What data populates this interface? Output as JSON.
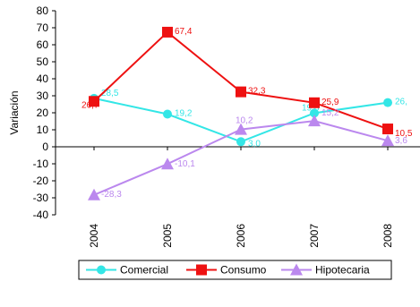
{
  "chart_data": {
    "type": "line",
    "ylabel": "Variación",
    "xlabel": "",
    "ylim": [
      -40,
      80
    ],
    "yticks": [
      "80",
      "70",
      "60",
      "50",
      "40",
      "30",
      "20",
      "10",
      "0",
      "-10",
      "-20",
      "-30",
      "-40"
    ],
    "categories": [
      "2004",
      "2005",
      "2006",
      "2007",
      "2008"
    ],
    "legend_position": "bottom",
    "grid": false,
    "series": [
      {
        "name": "Comercial",
        "color": "#33e6e6",
        "marker": "circle",
        "values": [
          28.5,
          19.2,
          3.0,
          19.8,
          26.0
        ],
        "labels": [
          "28,5",
          "19,2",
          "3,0",
          "19,8",
          "26,"
        ]
      },
      {
        "name": "Consumo",
        "color": "#ee1111",
        "marker": "square",
        "values": [
          26.7,
          67.4,
          32.3,
          25.9,
          10.5
        ],
        "labels": [
          "26,7",
          "67,4",
          "32,3",
          "25,9",
          "10,5"
        ]
      },
      {
        "name": "Hipotecaria",
        "color": "#bb88ee",
        "marker": "triangle",
        "values": [
          -28.3,
          -10.1,
          10.2,
          15.2,
          3.6
        ],
        "labels": [
          "-28,3",
          "-10,1",
          "10,2",
          "15,2",
          "3,6"
        ]
      }
    ]
  }
}
